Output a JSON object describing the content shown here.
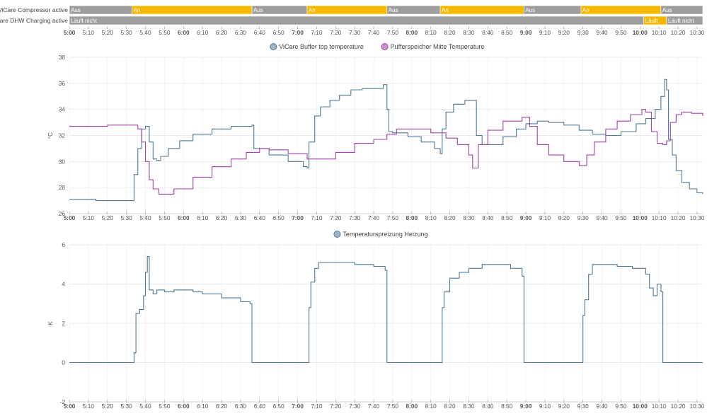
{
  "timeline": {
    "rows": [
      {
        "label": "ViCare Compressor active",
        "segments": [
          {
            "start": "5:00",
            "end": "5:33",
            "state": "Aus"
          },
          {
            "start": "5:33",
            "end": "6:36",
            "state": "An"
          },
          {
            "start": "6:36",
            "end": "7:05",
            "state": "Aus"
          },
          {
            "start": "7:05",
            "end": "7:47",
            "state": "An"
          },
          {
            "start": "7:47",
            "end": "8:15",
            "state": "Aus"
          },
          {
            "start": "8:15",
            "end": "8:59",
            "state": "An"
          },
          {
            "start": "8:59",
            "end": "9:29",
            "state": "Aus"
          },
          {
            "start": "9:29",
            "end": "10:11",
            "state": "An"
          },
          {
            "start": "10:11",
            "end": "10:33",
            "state": "Aus"
          }
        ]
      },
      {
        "label": "ViCare DHW Charging active",
        "segments": [
          {
            "start": "5:00",
            "end": "10:02",
            "state": "Läuft nicht"
          },
          {
            "start": "10:02",
            "end": "10:14",
            "state": "Läuft"
          },
          {
            "start": "10:14",
            "end": "10:33",
            "state": "Läuft nicht"
          }
        ]
      }
    ],
    "colors": {
      "Aus": "#9e9e9e",
      "An": "#f5b800",
      "Läuft nicht": "#9e9e9e",
      "Läuft": "#f5b800"
    }
  },
  "time_axis": {
    "start": "5:00",
    "end": "10:33",
    "ticks": [
      "5:00",
      "5:10",
      "5:20",
      "5:30",
      "5:40",
      "5:50",
      "6:00",
      "6:10",
      "6:20",
      "6:30",
      "6:40",
      "6:50",
      "7:00",
      "7:10",
      "7:20",
      "7:30",
      "7:40",
      "7:50",
      "8:00",
      "8:10",
      "8:20",
      "8:30",
      "8:40",
      "8:50",
      "9:00",
      "9:10",
      "9:20",
      "9:30",
      "9:40",
      "9:50",
      "10:00",
      "10:10",
      "10:20",
      "10:30"
    ],
    "bold_ticks": [
      "5:00",
      "6:00",
      "7:00",
      "8:00",
      "9:00",
      "10:00"
    ]
  },
  "chart_data": [
    {
      "type": "line",
      "step": true,
      "ylabel": "°C",
      "ylim": [
        26,
        38
      ],
      "yticks": [
        26,
        28,
        30,
        32,
        34,
        36,
        38
      ],
      "grid": true,
      "legend": "top-center",
      "series": [
        {
          "name": "ViCare Buffer top temperature",
          "color": "#4e7896",
          "points": [
            [
              "5:00",
              27.1
            ],
            [
              "5:07",
              27.1
            ],
            [
              "5:14",
              27.0
            ],
            [
              "5:33",
              27.0
            ],
            [
              "5:34",
              29.0
            ],
            [
              "5:36",
              31.0
            ],
            [
              "5:38",
              32.5
            ],
            [
              "5:40",
              32.7
            ],
            [
              "5:42",
              31.5
            ],
            [
              "5:44",
              30.2
            ],
            [
              "5:46",
              30.1
            ],
            [
              "5:48",
              30.4
            ],
            [
              "5:52",
              31.0
            ],
            [
              "5:58",
              31.6
            ],
            [
              "6:05",
              32.1
            ],
            [
              "6:15",
              32.5
            ],
            [
              "6:25",
              32.7
            ],
            [
              "6:36",
              32.8
            ],
            [
              "6:37",
              31.0
            ],
            [
              "6:45",
              30.5
            ],
            [
              "6:55",
              30.0
            ],
            [
              "7:03",
              29.6
            ],
            [
              "7:05",
              29.5
            ],
            [
              "7:06",
              31.5
            ],
            [
              "7:09",
              33.5
            ],
            [
              "7:12",
              34.2
            ],
            [
              "7:17",
              34.7
            ],
            [
              "7:22",
              35.1
            ],
            [
              "7:28",
              35.5
            ],
            [
              "7:34",
              35.6
            ],
            [
              "7:40",
              35.6
            ],
            [
              "7:45",
              35.9
            ],
            [
              "7:47",
              34.0
            ],
            [
              "7:48",
              32.3
            ],
            [
              "7:50",
              32.2
            ],
            [
              "7:58",
              31.9
            ],
            [
              "8:05",
              31.5
            ],
            [
              "8:12",
              31.0
            ],
            [
              "8:15",
              30.6
            ],
            [
              "8:16",
              32.5
            ],
            [
              "8:18",
              33.8
            ],
            [
              "8:22",
              34.4
            ],
            [
              "8:28",
              34.7
            ],
            [
              "8:31",
              34.7
            ],
            [
              "8:34",
              32.0
            ],
            [
              "8:37",
              31.3
            ],
            [
              "8:42",
              31.3
            ],
            [
              "8:48",
              31.9
            ],
            [
              "8:55",
              32.5
            ],
            [
              "9:00",
              32.9
            ],
            [
              "9:06",
              33.1
            ],
            [
              "9:12",
              33.0
            ],
            [
              "9:20",
              32.8
            ],
            [
              "9:28",
              32.4
            ],
            [
              "9:35",
              32.1
            ],
            [
              "9:42",
              32.0
            ],
            [
              "9:50",
              32.3
            ],
            [
              "9:58",
              32.9
            ],
            [
              "10:03",
              33.3
            ],
            [
              "10:08",
              34.0
            ],
            [
              "10:11",
              35.0
            ],
            [
              "10:13",
              36.3
            ],
            [
              "10:14",
              35.5
            ],
            [
              "10:15",
              31.7
            ],
            [
              "10:17",
              30.5
            ],
            [
              "10:19",
              29.3
            ],
            [
              "10:22",
              28.4
            ],
            [
              "10:26",
              27.9
            ],
            [
              "10:30",
              27.6
            ],
            [
              "10:33",
              27.5
            ]
          ]
        },
        {
          "name": "Pufferspeicher Mitte Temperature",
          "color": "#a040a8",
          "points": [
            [
              "5:00",
              32.7
            ],
            [
              "5:10",
              32.7
            ],
            [
              "5:20",
              32.8
            ],
            [
              "5:34",
              32.8
            ],
            [
              "5:36",
              32.5
            ],
            [
              "5:38",
              31.5
            ],
            [
              "5:40",
              30.0
            ],
            [
              "5:42",
              28.6
            ],
            [
              "5:44",
              27.9
            ],
            [
              "5:47",
              27.5
            ],
            [
              "5:51",
              27.5
            ],
            [
              "5:55",
              27.9
            ],
            [
              "6:05",
              28.8
            ],
            [
              "6:15",
              29.6
            ],
            [
              "6:25",
              30.2
            ],
            [
              "6:33",
              30.7
            ],
            [
              "6:40",
              31.0
            ],
            [
              "6:45",
              30.9
            ],
            [
              "6:55",
              30.6
            ],
            [
              "7:05",
              30.2
            ],
            [
              "7:12",
              30.2
            ],
            [
              "7:20",
              30.7
            ],
            [
              "7:30",
              31.4
            ],
            [
              "7:40",
              31.7
            ],
            [
              "7:47",
              32.1
            ],
            [
              "7:52",
              32.5
            ],
            [
              "8:00",
              32.5
            ],
            [
              "8:10",
              32.2
            ],
            [
              "8:18",
              31.8
            ],
            [
              "8:24",
              31.3
            ],
            [
              "8:30",
              30.5
            ],
            [
              "8:32",
              29.5
            ],
            [
              "8:35",
              31.3
            ],
            [
              "8:40",
              32.4
            ],
            [
              "8:48",
              33.1
            ],
            [
              "8:58",
              33.4
            ],
            [
              "9:02",
              32.7
            ],
            [
              "9:06",
              31.3
            ],
            [
              "9:12",
              30.5
            ],
            [
              "9:20",
              30.0
            ],
            [
              "9:28",
              29.7
            ],
            [
              "9:32",
              30.5
            ],
            [
              "9:36",
              31.5
            ],
            [
              "9:42",
              32.5
            ],
            [
              "9:48",
              33.1
            ],
            [
              "9:55",
              33.6
            ],
            [
              "10:01",
              34.0
            ],
            [
              "10:03",
              33.8
            ],
            [
              "10:06",
              32.3
            ],
            [
              "10:09",
              31.4
            ],
            [
              "10:12",
              31.3
            ],
            [
              "10:14",
              31.6
            ],
            [
              "10:16",
              33.0
            ],
            [
              "10:19",
              33.6
            ],
            [
              "10:22",
              33.8
            ],
            [
              "10:27",
              33.7
            ],
            [
              "10:33",
              33.5
            ]
          ]
        }
      ]
    },
    {
      "type": "line",
      "step": true,
      "ylabel": "K",
      "ylim": [
        -2,
        6
      ],
      "yticks": [
        -2,
        0,
        2,
        4,
        6
      ],
      "grid": true,
      "legend": "top-center",
      "series": [
        {
          "name": "Temperaturspreizung Heizung",
          "color": "#4e7896",
          "points": [
            [
              "5:00",
              0
            ],
            [
              "5:33",
              0
            ],
            [
              "5:34",
              0.5
            ],
            [
              "5:35",
              2.5
            ],
            [
              "5:37",
              2.7
            ],
            [
              "5:39",
              3.4
            ],
            [
              "5:40",
              4.6
            ],
            [
              "5:41",
              5.4
            ],
            [
              "5:42",
              3.7
            ],
            [
              "5:44",
              3.5
            ],
            [
              "5:46",
              3.7
            ],
            [
              "5:50",
              3.6
            ],
            [
              "5:55",
              3.7
            ],
            [
              "6:00",
              3.7
            ],
            [
              "6:05",
              3.6
            ],
            [
              "6:10",
              3.5
            ],
            [
              "6:20",
              3.3
            ],
            [
              "6:30",
              3.1
            ],
            [
              "6:35",
              3.0
            ],
            [
              "6:36",
              0
            ],
            [
              "7:05",
              0
            ],
            [
              "7:06",
              2.8
            ],
            [
              "7:07",
              4.1
            ],
            [
              "7:09",
              4.8
            ],
            [
              "7:11",
              5.1
            ],
            [
              "7:20",
              5.1
            ],
            [
              "7:30",
              5.0
            ],
            [
              "7:40",
              4.9
            ],
            [
              "7:46",
              4.7
            ],
            [
              "7:47",
              0
            ],
            [
              "8:15",
              0
            ],
            [
              "8:16",
              2.8
            ],
            [
              "8:17",
              3.6
            ],
            [
              "8:20",
              4.3
            ],
            [
              "8:25",
              4.6
            ],
            [
              "8:30",
              4.8
            ],
            [
              "8:37",
              5.0
            ],
            [
              "8:45",
              5.0
            ],
            [
              "8:52",
              4.8
            ],
            [
              "8:58",
              4.4
            ],
            [
              "8:59",
              0
            ],
            [
              "9:29",
              0
            ],
            [
              "9:30",
              2.4
            ],
            [
              "9:31",
              3.2
            ],
            [
              "9:33",
              4.5
            ],
            [
              "9:35",
              5.0
            ],
            [
              "9:40",
              5.0
            ],
            [
              "9:48",
              4.9
            ],
            [
              "9:56",
              4.8
            ],
            [
              "10:03",
              4.5
            ],
            [
              "10:05",
              3.8
            ],
            [
              "10:07",
              3.4
            ],
            [
              "10:09",
              4.0
            ],
            [
              "10:11",
              3.6
            ],
            [
              "10:12",
              0
            ],
            [
              "10:33",
              0
            ]
          ]
        }
      ]
    }
  ]
}
